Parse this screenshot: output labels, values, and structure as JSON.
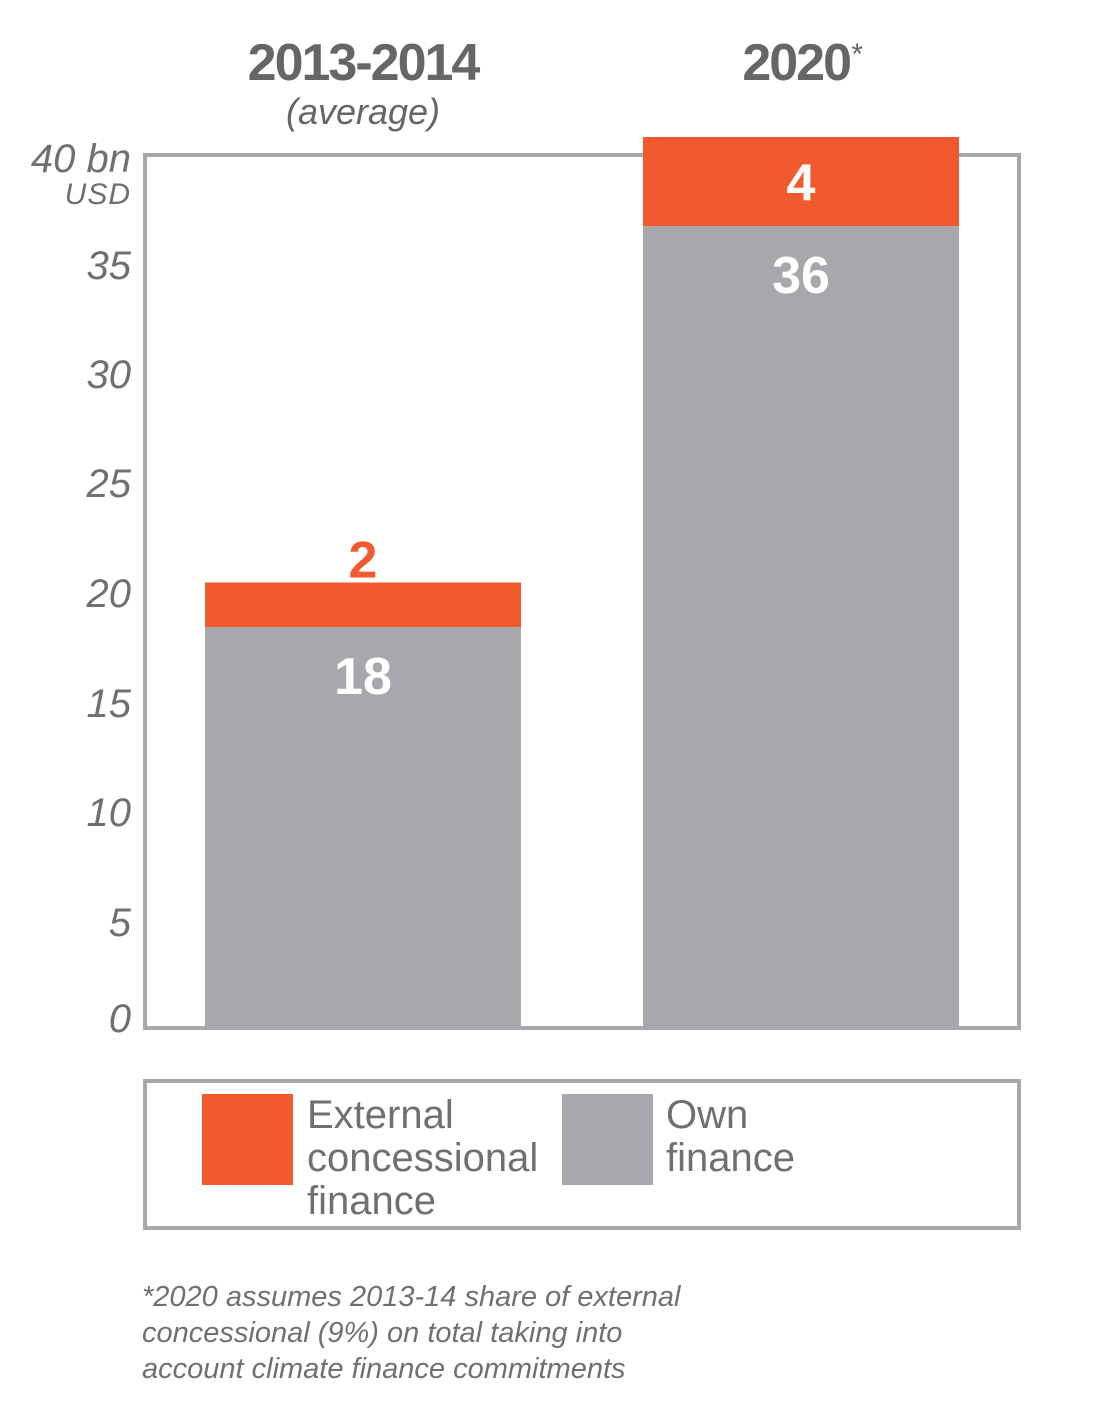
{
  "chart_data": {
    "type": "bar",
    "stacked": true,
    "categories": [
      "2013-2014",
      "2020"
    ],
    "category_subtitles": [
      "(average)",
      ""
    ],
    "category_marks": [
      "",
      "*"
    ],
    "series": [
      {
        "name": "Own finance",
        "values": [
          18,
          36
        ],
        "color": "#a7a8ab"
      },
      {
        "name": "External concessional finance",
        "values": [
          2,
          4
        ],
        "color": "#f15a2e"
      }
    ],
    "data_labels": [
      [
        "18",
        "36"
      ],
      [
        "2",
        "4"
      ]
    ],
    "ylim": [
      0,
      40
    ],
    "yticks": [
      "0",
      "5",
      "10",
      "15",
      "20",
      "25",
      "30",
      "35",
      "40 bn"
    ],
    "y_unit": "USD",
    "legend": {
      "position": "bottom",
      "items": [
        {
          "lines": [
            "External",
            "concessional",
            "finance"
          ],
          "color": "#f15a2e"
        },
        {
          "lines": [
            "Own",
            "finance"
          ],
          "color": "#a7a8ab"
        }
      ]
    },
    "footnote": [
      "*2020 assumes 2013-14 share of external",
      "concessional (9%) on total taking into",
      "account climate finance commitments"
    ],
    "grid": false
  }
}
